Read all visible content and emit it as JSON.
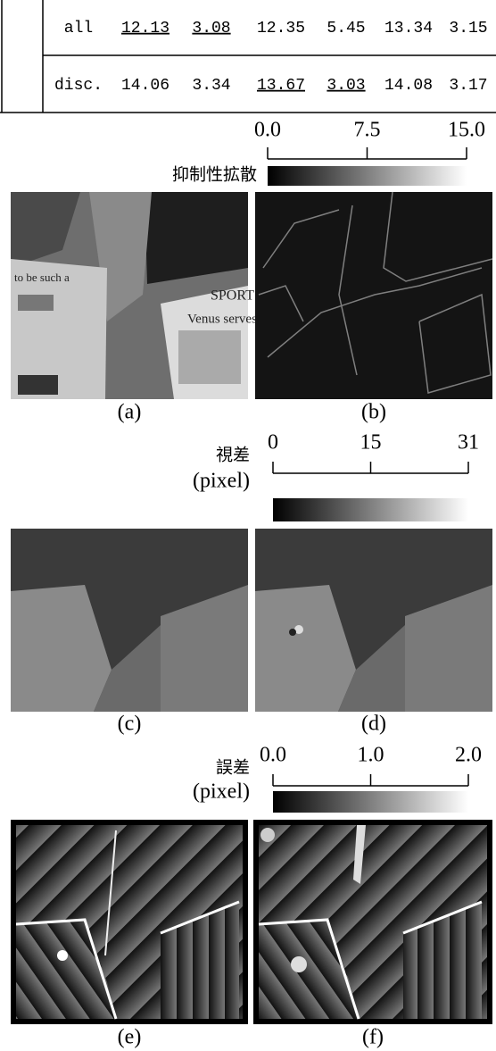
{
  "table": {
    "rows": [
      [
        "all",
        "12.13",
        "3.08",
        "12.35",
        "5.45",
        "13.34",
        "3.15"
      ],
      [
        "disc.",
        "14.06",
        "3.34",
        "13.67",
        "3.03",
        "14.08",
        "3.17"
      ]
    ]
  },
  "colorbars": [
    {
      "label": [
        "抑制性拡散"
      ],
      "ticks": [
        "0.0",
        "7.5",
        "15.0"
      ]
    },
    {
      "label": [
        "視差",
        "(pixel)"
      ],
      "ticks": [
        "0",
        "15",
        "31"
      ]
    },
    {
      "label": [
        "誤差",
        "(pixel)"
      ],
      "ticks": [
        "0.0",
        "1.0",
        "2.0"
      ]
    }
  ],
  "panels": [
    {
      "caption": "(a)",
      "image_text": [
        "to be such a",
        "SPORT",
        "Venus serves"
      ]
    },
    {
      "caption": "(b)"
    },
    {
      "caption": "(c)"
    },
    {
      "caption": "(d)"
    },
    {
      "caption": "(e)"
    },
    {
      "caption": "(f)"
    }
  ]
}
